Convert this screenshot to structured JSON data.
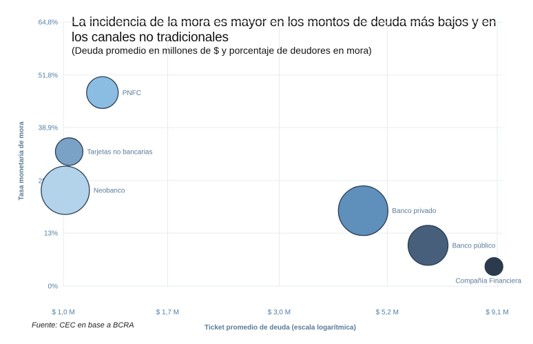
{
  "title": "La incidencia de la mora es mayor en los montos de deuda más bajos y en los canales no tradicionales",
  "subtitle": "(Deuda promedio en millones de $ y porcentaje de deudores en mora)",
  "source": "Fuente: CEC en base a BCRA",
  "chart_data": {
    "type": "scatter",
    "xlabel": "Ticket promedio de deuda (escala logarítmica)",
    "ylabel": "Tasa monetaria de mora",
    "x_scale": "log",
    "xlim": [
      1.0,
      9.1
    ],
    "ylim": [
      0,
      64.8
    ],
    "x_ticks": [
      1.0,
      1.7,
      3.0,
      5.2,
      9.1
    ],
    "x_tick_labels": [
      "$ 1,0 M",
      "$ 1,7 M",
      "$ 3,0 M",
      "$ 5,2 M",
      "$ 9,1 M"
    ],
    "y_ticks": [
      0,
      13,
      25.9,
      38.9,
      51.8,
      64.8
    ],
    "y_tick_labels": [
      "0%",
      "13%",
      "25,9%",
      "38,9%",
      "51,8%",
      "64,8%"
    ],
    "grid": true,
    "points": [
      {
        "label": "PNFC",
        "x": 1.22,
        "y": 47.5,
        "size": 23,
        "color": "#8bbde2",
        "label_pos": "right"
      },
      {
        "label": "Tarjetas no bancarias",
        "x": 1.03,
        "y": 33.0,
        "size": 20,
        "color": "#7aa2c6",
        "label_pos": "right"
      },
      {
        "label": "Neobanco",
        "x": 1.01,
        "y": 23.5,
        "size": 35,
        "color": "#b3d3ea",
        "label_pos": "right"
      },
      {
        "label": "Banco privado",
        "x": 4.6,
        "y": 18.5,
        "size": 36,
        "color": "#5f8fbb",
        "label_pos": "right"
      },
      {
        "label": "Banco público",
        "x": 6.4,
        "y": 10.0,
        "size": 29,
        "color": "#475f7a",
        "label_pos": "right"
      },
      {
        "label": "Compañía Financiera",
        "x": 8.95,
        "y": 4.8,
        "size": 13,
        "color": "#2c3a4d",
        "label_pos": "below"
      }
    ],
    "colors": {
      "tick": "#4f7ea8",
      "label": "#5a7a98",
      "grid": "#e6ebf0",
      "outline": "#2a3d52"
    }
  }
}
